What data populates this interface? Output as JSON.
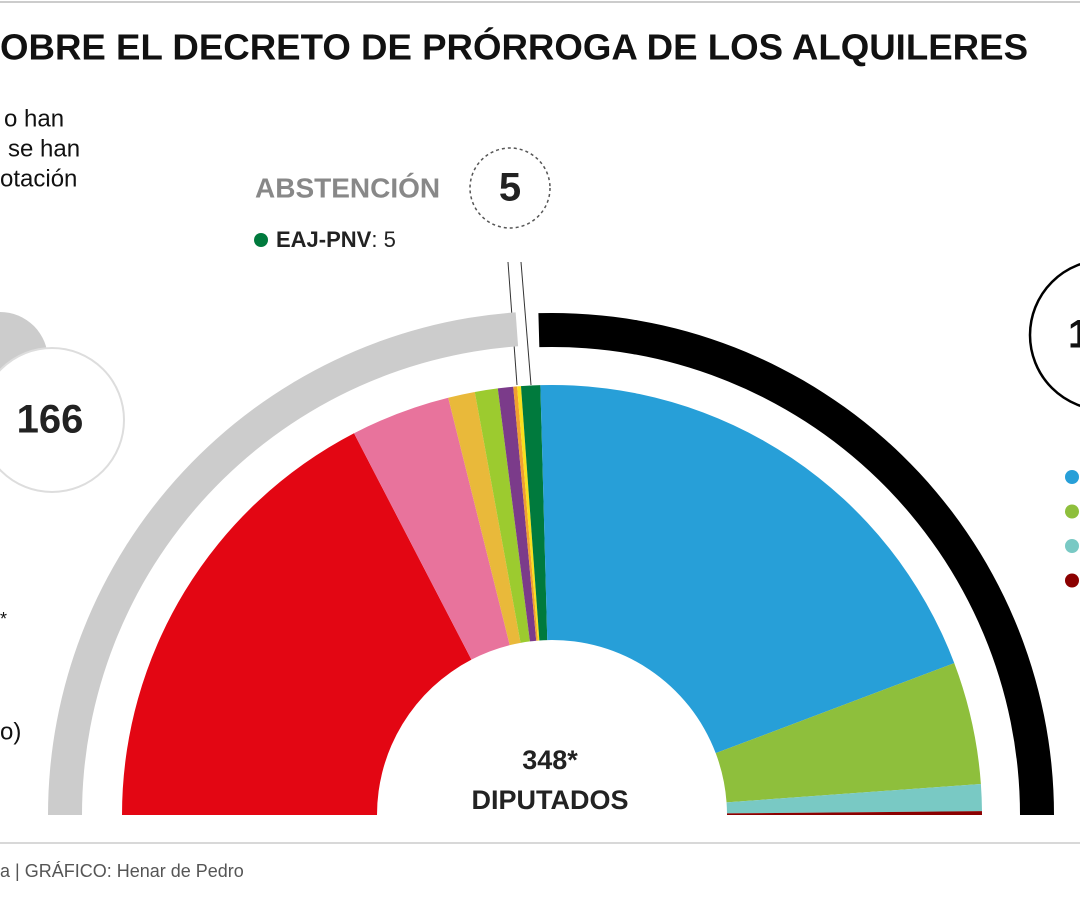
{
  "chart_data": {
    "type": "pie",
    "title": "OBRE EL DECRETO DE PRÓRROGA DE LOS ALQUILERES",
    "notes": [
      "o han",
      "se han",
      "otación"
    ],
    "side_notes": [
      "*",
      "o)"
    ],
    "abstention_label": "ABSTENCIÓN",
    "abstention_total": 5,
    "abstention_party": "EAJ-PNV",
    "abstention_party_value": ": 5",
    "left_total": 166,
    "right_total_partial": "1",
    "total": 348,
    "total_label": "348*",
    "center_text": "DIPUTADOS",
    "source": "a  |  GRÁFICO: Henar de Pedro",
    "ring_colors": [
      "#cccccc",
      "#000000"
    ],
    "slices": {
      "values": [
        121,
        26,
        7,
        6,
        4,
        1,
        1,
        5,
        137,
        32,
        7,
        1
      ],
      "colors": [
        "#e30613",
        "#e8739c",
        "#e9b93a",
        "#9ccb2f",
        "#7b3b8a",
        "#f0a030",
        "#f7e01d",
        "#007a3d",
        "#279fd8",
        "#8ebf3c",
        "#79c9c4",
        "#8b0000"
      ]
    },
    "legend_colors": [
      "#279fd8",
      "#8ebf3c",
      "#79c9c4",
      "#8b0000"
    ]
  }
}
